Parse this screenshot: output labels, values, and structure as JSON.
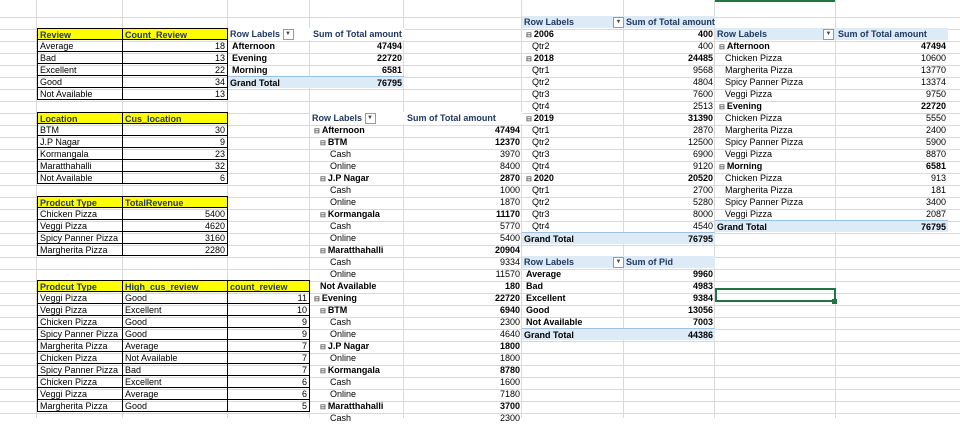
{
  "sheet": {
    "review_table": {
      "headers": [
        "Review",
        "Count_Review"
      ],
      "rows": [
        [
          "Average",
          "18"
        ],
        [
          "Bad",
          "13"
        ],
        [
          "Excellent",
          "22"
        ],
        [
          "Good",
          "34"
        ],
        [
          "Not Available",
          "13"
        ]
      ]
    },
    "location_table": {
      "headers": [
        "Location",
        "Cus_location"
      ],
      "rows": [
        [
          "BTM",
          "30"
        ],
        [
          "J.P Nagar",
          "9"
        ],
        [
          "Kormangala",
          "23"
        ],
        [
          "Maratthahalli",
          "32"
        ],
        [
          "Not Available",
          "6"
        ]
      ]
    },
    "revenue_table": {
      "headers": [
        "Prodcut Type",
        "TotalRevenue"
      ],
      "rows": [
        [
          "Chicken Pizza",
          "5400"
        ],
        [
          "Veggi Pizza",
          "4620"
        ],
        [
          "Spicy Panner Pizza",
          "3160"
        ],
        [
          "Margherita Pizza",
          "2280"
        ]
      ]
    },
    "high_review_table": {
      "headers": [
        "Prodcut Type",
        "High_cus_review",
        "count_review"
      ],
      "rows": [
        [
          "Veggi Pizza",
          "Good",
          "11"
        ],
        [
          "Veggi Pizza",
          "Excellent",
          "10"
        ],
        [
          "Chicken Pizza",
          "Good",
          "9"
        ],
        [
          "Spicy Panner Pizza",
          "Good",
          "9"
        ],
        [
          "Margherita Pizza",
          "Average",
          "7"
        ],
        [
          "Chicken Pizza",
          "Not Available",
          "7"
        ],
        [
          "Spicy Panner Pizza",
          "Bad",
          "7"
        ],
        [
          "Chicken Pizza",
          "Excellent",
          "6"
        ],
        [
          "Veggi Pizza",
          "Average",
          "6"
        ],
        [
          "Margherita Pizza",
          "Good",
          "5"
        ]
      ]
    },
    "pivot_time": {
      "headers": [
        "Row Labels",
        "Sum of Total amount"
      ],
      "rows": [
        [
          "Afternoon",
          "47494"
        ],
        [
          "Evening",
          "22720"
        ],
        [
          "Morning",
          "6581"
        ]
      ],
      "total": [
        "Grand Total",
        "76795"
      ]
    },
    "pivot_location": {
      "headers": [
        "Row Labels",
        "Sum of Total amount"
      ],
      "rows": [
        [
          "Afternoon",
          "47494"
        ],
        [
          "BTM",
          "12370"
        ],
        [
          "Cash",
          "3970"
        ],
        [
          "Online",
          "8400"
        ],
        [
          "J.P Nagar",
          "2870"
        ],
        [
          "Cash",
          "1000"
        ],
        [
          "Online",
          "1870"
        ],
        [
          "Kormangala",
          "11170"
        ],
        [
          "Cash",
          "5770"
        ],
        [
          "Online",
          "5400"
        ],
        [
          "Maratthahalli",
          "20904"
        ],
        [
          "Cash",
          "9334"
        ],
        [
          "Online",
          "11570"
        ],
        [
          "Not Available",
          "180"
        ],
        [
          "Evening",
          "22720"
        ],
        [
          "BTM",
          "6940"
        ],
        [
          "Cash",
          "2300"
        ],
        [
          "Online",
          "4640"
        ],
        [
          "J.P Nagar",
          "1800"
        ],
        [
          "Online",
          "1800"
        ],
        [
          "Kormangala",
          "8780"
        ],
        [
          "Cash",
          "1600"
        ],
        [
          "Online",
          "7180"
        ],
        [
          "Maratthahalli",
          "3700"
        ],
        [
          "Cash",
          "2300"
        ]
      ]
    },
    "pivot_year": {
      "headers": [
        "Row Labels",
        "Sum of Total amount"
      ],
      "rows": [
        [
          "2006",
          "400"
        ],
        [
          "Qtr2",
          "400"
        ],
        [
          "2018",
          "24485"
        ],
        [
          "Qtr1",
          "9568"
        ],
        [
          "Qtr2",
          "4804"
        ],
        [
          "Qtr3",
          "7600"
        ],
        [
          "Qtr4",
          "2513"
        ],
        [
          "2019",
          "31390"
        ],
        [
          "Qtr1",
          "2870"
        ],
        [
          "Qtr2",
          "12500"
        ],
        [
          "Qtr3",
          "6900"
        ],
        [
          "Qtr4",
          "9120"
        ],
        [
          "2020",
          "20520"
        ],
        [
          "Qtr1",
          "2700"
        ],
        [
          "Qtr2",
          "5280"
        ],
        [
          "Qtr3",
          "8000"
        ],
        [
          "Qtr4",
          "4540"
        ]
      ],
      "total": [
        "Grand Total",
        "76795"
      ]
    },
    "pivot_review": {
      "headers": [
        "Row Labels",
        "Sum of Pid"
      ],
      "rows": [
        [
          "Average",
          "9960"
        ],
        [
          "Bad",
          "4983"
        ],
        [
          "Excellent",
          "9384"
        ],
        [
          "Good",
          "13056"
        ],
        [
          "Not Available",
          "7003"
        ]
      ],
      "total": [
        "Grand Total",
        "44386"
      ]
    },
    "pivot_product": {
      "headers": [
        "Row Labels",
        "Sum of Total amount"
      ],
      "rows": [
        [
          "Afternoon",
          "47494"
        ],
        [
          "Chicken Pizza",
          "10600"
        ],
        [
          "Margherita Pizza",
          "13770"
        ],
        [
          "Spicy Panner Pizza",
          "13374"
        ],
        [
          "Veggi Pizza",
          "9750"
        ],
        [
          "Evening",
          "22720"
        ],
        [
          "Chicken Pizza",
          "5550"
        ],
        [
          "Margherita Pizza",
          "2400"
        ],
        [
          "Spicy Panner Pizza",
          "5900"
        ],
        [
          "Veggi Pizza",
          "8870"
        ],
        [
          "Morning",
          "6581"
        ],
        [
          "Chicken Pizza",
          "913"
        ],
        [
          "Margherita Pizza",
          "181"
        ],
        [
          "Spicy Panner Pizza",
          "3400"
        ],
        [
          "Veggi Pizza",
          "2087"
        ]
      ],
      "total": [
        "Grand Total",
        "76795"
      ]
    }
  },
  "colors": {
    "header_yellow": "#ffff00",
    "pivot_header": "#ddebf7",
    "selection": "#217346"
  }
}
